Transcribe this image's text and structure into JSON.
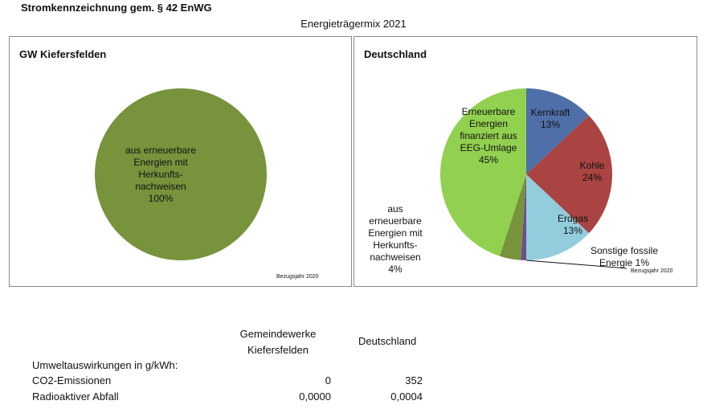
{
  "header": {
    "title": "Stromkennzeichnung gem. § 42 EnWG",
    "subtitle": "Energieträgermix 2021"
  },
  "chart_data": [
    {
      "type": "pie",
      "title": "GW Kiefersfelden",
      "slices": [
        {
          "label": "aus erneuerbare Energien mit Herkunfts- nachweisen",
          "value": 100,
          "value_label": "100%",
          "color": "#77933c"
        }
      ],
      "note": "Bezugsjahr 2020"
    },
    {
      "type": "pie",
      "title": "Deutschland",
      "slices": [
        {
          "label": "Kernkraft",
          "value": 13,
          "value_label": "13%",
          "color": "#4f6fa8"
        },
        {
          "label": "Kohle",
          "value": 24,
          "value_label": "24%",
          "color": "#a94442"
        },
        {
          "label": "Erdgas",
          "value": 13,
          "value_label": "13%",
          "color": "#93cddd"
        },
        {
          "label": "Sonstige fossile Energie",
          "value": 1,
          "value_label": "1%",
          "color": "#6e4f8a"
        },
        {
          "label": "aus erneuerbare Energien mit Herkunfts- nachweisen",
          "value": 4,
          "value_label": "4%",
          "color": "#77933c"
        },
        {
          "label": "Erneuerbare Energien finanziert aus EEG-Umlage",
          "value": 45,
          "value_label": "45%",
          "color": "#92d050"
        }
      ],
      "note": "Bezugsjahr 2020"
    }
  ],
  "table": {
    "col1_header_line1": "Gemeindewerke",
    "col1_header_line2": "Kiefersfelden",
    "col2_header": "Deutschland",
    "section_label": "Umweltauswirkungen in g/kWh:",
    "rows": [
      {
        "label": "CO2-Emissionen",
        "gw": "0",
        "de": "352"
      },
      {
        "label": "Radioaktiver Abfall",
        "gw": "0,0000",
        "de": "0,0004"
      }
    ]
  }
}
